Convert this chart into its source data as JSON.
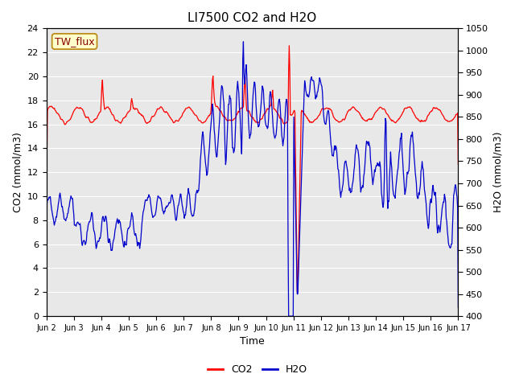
{
  "title": "LI7500 CO2 and H2O",
  "xlabel": "Time",
  "ylabel_left": "CO2 (mmol/m3)",
  "ylabel_right": "H2O (mmol/m3)",
  "annotation": "TW_flux",
  "ylim_left": [
    0,
    24
  ],
  "ylim_right": [
    400,
    1050
  ],
  "yticks_left": [
    0,
    2,
    4,
    6,
    8,
    10,
    12,
    14,
    16,
    18,
    20,
    22,
    24
  ],
  "yticks_right": [
    400,
    450,
    500,
    550,
    600,
    650,
    700,
    750,
    800,
    850,
    900,
    950,
    1000,
    1050
  ],
  "xtick_labels": [
    "Jun 2",
    "Jun 3",
    "Jun 4",
    "Jun 5",
    "Jun 6",
    "Jun 7",
    "Jun 8",
    "Jun 9",
    "Jun 10",
    "Jun 11",
    "Jun 12",
    "Jun 13",
    "Jun 14",
    "Jun 15",
    "Jun 16",
    "Jun 17"
  ],
  "plot_bg_color": "#e8e8e8",
  "grid_color": "#ffffff",
  "co2_color": "#ff0000",
  "h2o_color": "#0000cc",
  "title_fontsize": 11,
  "axis_label_fontsize": 9,
  "tick_fontsize": 8,
  "legend_fontsize": 9,
  "n_days": 15,
  "co2_base": 16.8,
  "co2_amplitude": 0.6,
  "co2_noise_std": 0.15
}
